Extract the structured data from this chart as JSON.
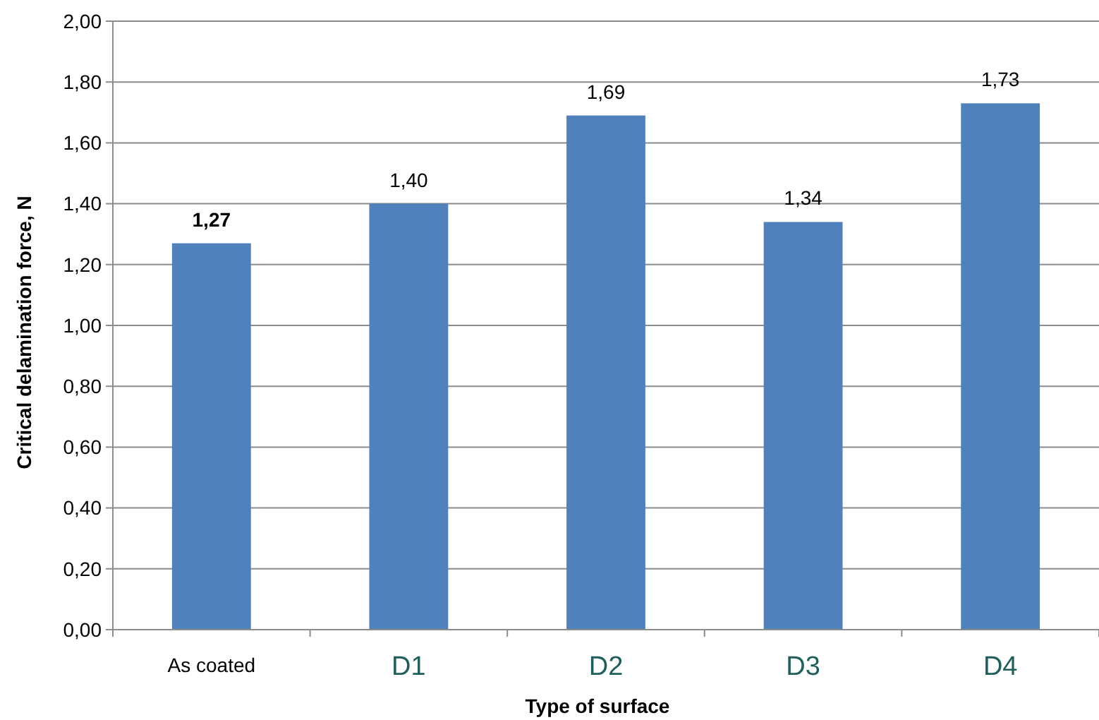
{
  "chart_data": {
    "type": "bar",
    "xlabel": "Type of surface",
    "ylabel": "Critical delamination force, N",
    "categories": [
      "As coated",
      "D1",
      "D2",
      "D3",
      "D4"
    ],
    "values": [
      1.27,
      1.4,
      1.69,
      1.34,
      1.73
    ],
    "value_labels": [
      "1,27",
      "1,40",
      "1,69",
      "1,34",
      "1,73"
    ],
    "color": "#4f81bd",
    "ylim": [
      0,
      2
    ],
    "yticks": [
      {
        "value": 0,
        "label": "0,00"
      },
      {
        "value": 0.2,
        "label": "0,20"
      },
      {
        "value": 0.4,
        "label": "0,40"
      },
      {
        "value": 0.6,
        "label": "0,60"
      },
      {
        "value": 0.8,
        "label": "0,80"
      },
      {
        "value": 1,
        "label": "1,00"
      },
      {
        "value": 1.2,
        "label": "1,20"
      },
      {
        "value": 1.4,
        "label": "1,40"
      },
      {
        "value": 1.6,
        "label": "1,60"
      },
      {
        "value": 1.8,
        "label": "1,80"
      },
      {
        "value": 2,
        "label": "2,00"
      }
    ],
    "grid": "y"
  }
}
